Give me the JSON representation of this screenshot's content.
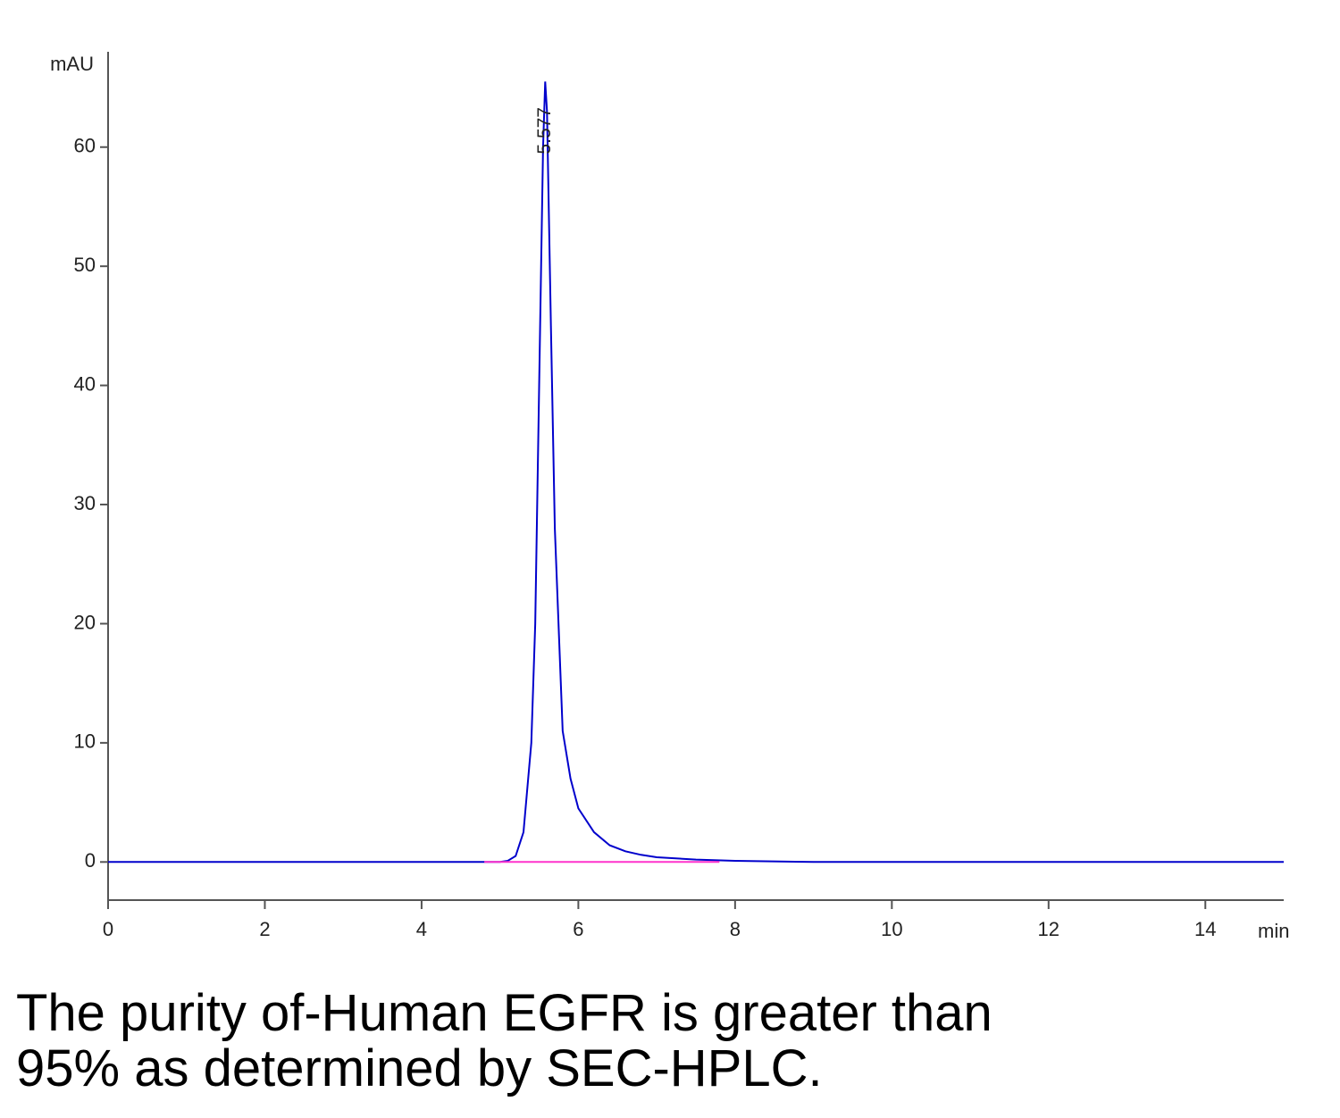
{
  "chart_data": {
    "type": "line",
    "ylabel": "mAU",
    "xlabel": "min",
    "xlim": [
      0,
      15
    ],
    "ylim": [
      -3.2,
      68
    ],
    "xticks": [
      0,
      2,
      4,
      6,
      8,
      10,
      12,
      14
    ],
    "yticks": [
      0,
      10,
      20,
      30,
      40,
      50,
      60
    ],
    "peak_label": {
      "x": 5.577,
      "label": "5.577"
    },
    "series": [
      {
        "color": "#0000cc",
        "x": [
          0,
          4.8,
          5.0,
          5.1,
          5.2,
          5.3,
          5.4,
          5.45,
          5.5,
          5.55,
          5.577,
          5.6,
          5.65,
          5.7,
          5.8,
          5.9,
          6.0,
          6.2,
          6.4,
          6.6,
          6.8,
          7.0,
          7.5,
          8.0,
          9.0,
          15
        ],
        "values": [
          0,
          0,
          0,
          0.1,
          0.5,
          2.5,
          10,
          20,
          40,
          60,
          65.5,
          63,
          45,
          28,
          11,
          7,
          4.5,
          2.5,
          1.4,
          0.9,
          0.6,
          0.4,
          0.2,
          0.1,
          0,
          0
        ]
      },
      {
        "color": "#ff33cc",
        "x": [
          4.8,
          7.8
        ],
        "values": [
          0,
          0
        ]
      }
    ]
  },
  "caption": [
    "The purity of-Human EGFR is greater than",
    "95% as determined by SEC-HPLC."
  ]
}
